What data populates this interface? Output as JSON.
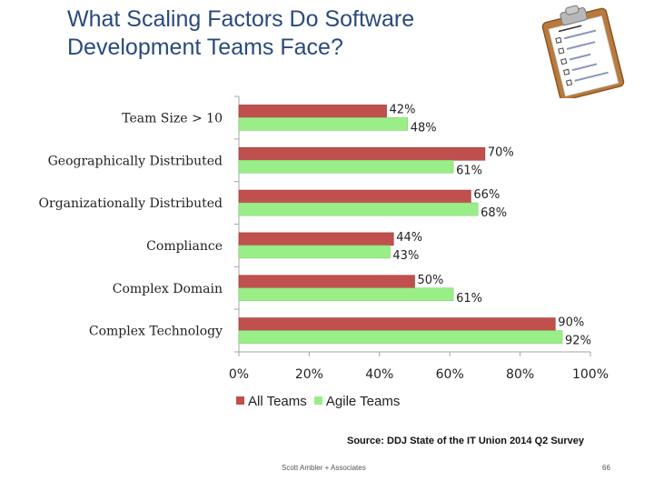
{
  "title": {
    "line1": "What Scaling Factors Do Software",
    "line2": "Development Teams Face?"
  },
  "colors": {
    "title": "#2a4a7c",
    "all_teams": "#c0504d",
    "agile_teams": "#99ee88",
    "axis": "#a6a6a6"
  },
  "illustration": {
    "icon": "clipboard-checklist-icon"
  },
  "chart_data": {
    "type": "bar",
    "orientation": "horizontal",
    "title": "What Scaling Factors Do Software Development Teams Face?",
    "categories": [
      "Team Size > 10",
      "Geographically Distributed",
      "Organizationally Distributed",
      "Compliance",
      "Complex Domain",
      "Complex Technology"
    ],
    "series": [
      {
        "name": "All Teams",
        "values": [
          42,
          70,
          66,
          44,
          50,
          90
        ],
        "labels": [
          "42%",
          "70%",
          "66%",
          "44%",
          "50%",
          "90%"
        ]
      },
      {
        "name": "Agile Teams",
        "values": [
          48,
          61,
          68,
          43,
          61,
          92
        ],
        "labels": [
          "48%",
          "61%",
          "68%",
          "43%",
          "61%",
          "92%"
        ]
      }
    ],
    "xlim": [
      0,
      100
    ],
    "xticks": [
      "0%",
      "20%",
      "40%",
      "60%",
      "80%",
      "100%"
    ],
    "xlabel": "",
    "ylabel": "",
    "grid": false,
    "legend_position": "bottom"
  },
  "source": "Source: DDJ State of the IT Union 2014 Q2 Survey",
  "footer": {
    "author": "Scott Ambler + Associates",
    "page": "66"
  }
}
